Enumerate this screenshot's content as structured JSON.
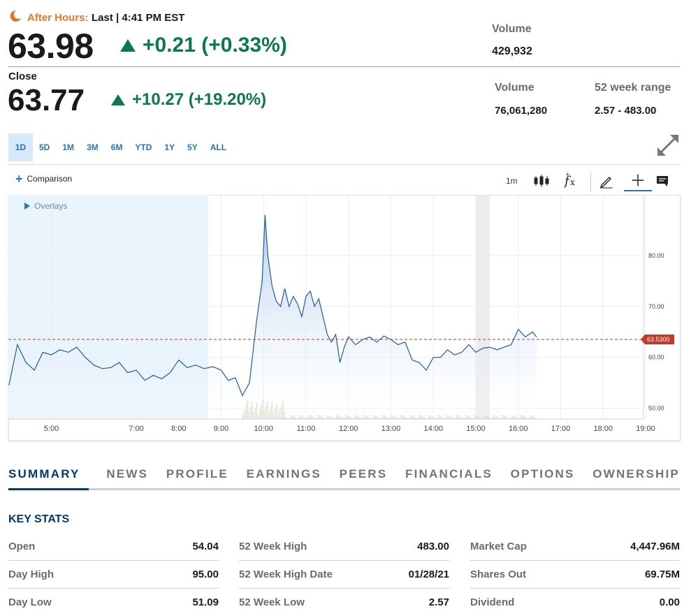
{
  "after_hours": {
    "label": "After Hours:",
    "last": "Last | 4:41 PM EST",
    "price": "63.98",
    "change": "+0.21 (+0.33%)",
    "volume_label": "Volume",
    "volume": "429,932"
  },
  "close": {
    "label": "Close",
    "price": "63.77",
    "change": "+10.27 (+19.20%)",
    "volume_label": "Volume",
    "volume": "76,061,280",
    "range_label": "52 week range",
    "range": "2.57 - 483.00"
  },
  "colors": {
    "up": "#0c7a48",
    "accent": "#2a74b5",
    "after_hours": "#e5772b",
    "nav_active": "#00386e",
    "price_tag": "#c0392b"
  },
  "icons": [
    "moon-icon",
    "expand-icon",
    "candlestick-icon",
    "fx-icon",
    "pencil-icon",
    "crosshair-icon",
    "legend-icon",
    "plus-icon"
  ],
  "range_tabs": [
    {
      "label": "1D",
      "active": true
    },
    {
      "label": "5D"
    },
    {
      "label": "1M"
    },
    {
      "label": "3M"
    },
    {
      "label": "6M"
    },
    {
      "label": "YTD"
    },
    {
      "label": "1Y"
    },
    {
      "label": "5Y"
    },
    {
      "label": "ALL"
    }
  ],
  "toolbar": {
    "comparison": "Comparison",
    "interval": "1m",
    "overlays": "Overlays"
  },
  "chart_data": {
    "type": "area",
    "x_ticks": [
      "5:00",
      "7:00",
      "8:00",
      "9:00",
      "10:00",
      "11:00",
      "12:00",
      "13:00",
      "14:00",
      "15:00",
      "16:00",
      "17:00",
      "18:00",
      "19:00"
    ],
    "y_ticks": [
      "80.00",
      "70.00",
      "60.00",
      "50.00"
    ],
    "ylim": [
      47.9,
      91.9
    ],
    "current_price_tag": "63.5300",
    "reference_line": 63.53,
    "series": [
      {
        "values": [
          [
            "4:00",
            54.5
          ],
          [
            "4:12",
            62.5
          ],
          [
            "4:24",
            59
          ],
          [
            "4:36",
            57.5
          ],
          [
            "4:48",
            61
          ],
          [
            "5:00",
            60.5
          ],
          [
            "5:12",
            61.5
          ],
          [
            "5:24",
            61
          ],
          [
            "5:36",
            62
          ],
          [
            "5:48",
            60
          ],
          [
            "6:00",
            58.5
          ],
          [
            "6:12",
            57.8
          ],
          [
            "6:24",
            58
          ],
          [
            "6:36",
            59
          ],
          [
            "6:48",
            57
          ],
          [
            "7:00",
            57.5
          ],
          [
            "7:12",
            55.5
          ],
          [
            "7:24",
            56.5
          ],
          [
            "7:36",
            55.8
          ],
          [
            "7:48",
            57
          ],
          [
            "8:00",
            59.5
          ],
          [
            "8:12",
            58
          ],
          [
            "8:24",
            58.5
          ],
          [
            "8:36",
            57.8
          ],
          [
            "8:48",
            58.2
          ],
          [
            "9:00",
            57.5
          ],
          [
            "9:10",
            55.5
          ],
          [
            "9:20",
            56
          ],
          [
            "9:30",
            52.5
          ],
          [
            "9:40",
            55
          ],
          [
            "9:50",
            67
          ],
          [
            "9:58",
            75
          ],
          [
            "10:02",
            88
          ],
          [
            "10:06",
            80
          ],
          [
            "10:12",
            74
          ],
          [
            "10:18",
            71
          ],
          [
            "10:24",
            70
          ],
          [
            "10:30",
            73.5
          ],
          [
            "10:36",
            70
          ],
          [
            "10:42",
            72
          ],
          [
            "10:48",
            70.5
          ],
          [
            "10:54",
            68
          ],
          [
            "11:00",
            72
          ],
          [
            "11:06",
            73
          ],
          [
            "11:12",
            70
          ],
          [
            "11:18",
            71.5
          ],
          [
            "11:24",
            68
          ],
          [
            "11:30",
            64.5
          ],
          [
            "11:36",
            63
          ],
          [
            "11:42",
            64.5
          ],
          [
            "11:48",
            59
          ],
          [
            "11:54",
            62
          ],
          [
            "12:00",
            64
          ],
          [
            "12:10",
            62.5
          ],
          [
            "12:20",
            63.5
          ],
          [
            "12:30",
            64
          ],
          [
            "12:40",
            63
          ],
          [
            "12:50",
            64.2
          ],
          [
            "13:00",
            63.5
          ],
          [
            "13:10",
            62.5
          ],
          [
            "13:20",
            63
          ],
          [
            "13:30",
            59.5
          ],
          [
            "13:40",
            59
          ],
          [
            "13:50",
            57.5
          ],
          [
            "14:00",
            60
          ],
          [
            "14:10",
            60
          ],
          [
            "14:20",
            61.5
          ],
          [
            "14:30",
            60.5
          ],
          [
            "14:40",
            61
          ],
          [
            "14:50",
            62.5
          ],
          [
            "15:00",
            61
          ],
          [
            "15:10",
            61.8
          ],
          [
            "15:20",
            62
          ],
          [
            "15:30",
            61.5
          ],
          [
            "15:40",
            62
          ],
          [
            "15:50",
            62.5
          ],
          [
            "16:00",
            65.5
          ],
          [
            "16:10",
            64
          ],
          [
            "16:20",
            65
          ],
          [
            "16:26",
            64
          ]
        ]
      }
    ]
  },
  "sections": [
    "SUMMARY",
    "NEWS",
    "PROFILE",
    "EARNINGS",
    "PEERS",
    "FINANCIALS",
    "OPTIONS",
    "OWNERSHIP"
  ],
  "key_stats": {
    "title": "KEY STATS",
    "columns": [
      [
        {
          "label": "Open",
          "value": "54.04"
        },
        {
          "label": "Day High",
          "value": "95.00"
        },
        {
          "label": "Day Low",
          "value": "51.09"
        }
      ],
      [
        {
          "label": "52 Week High",
          "value": "483.00"
        },
        {
          "label": "52 Week High Date",
          "value": "01/28/21"
        },
        {
          "label": "52 Week Low",
          "value": "2.57"
        }
      ],
      [
        {
          "label": "Market Cap",
          "value": "4,447.96M"
        },
        {
          "label": "Shares Out",
          "value": "69.75M"
        },
        {
          "label": "Dividend",
          "value": "0.00"
        }
      ]
    ]
  }
}
